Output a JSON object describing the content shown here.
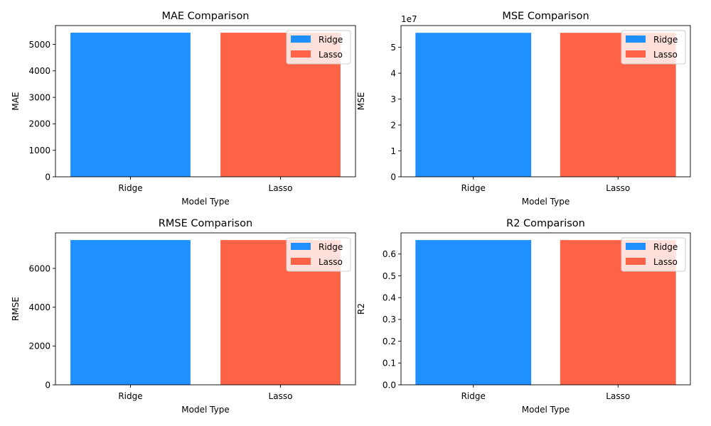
{
  "colors": {
    "ridge": "#1E90FF",
    "lasso": "#FF6347"
  },
  "chart_data": [
    {
      "type": "bar",
      "title": "MAE Comparison",
      "xlabel": "Model Type",
      "ylabel": "MAE",
      "categories": [
        "Ridge",
        "Lasso"
      ],
      "values": [
        5440,
        5440
      ],
      "ylim": [
        0,
        5710
      ],
      "yticks": [
        0,
        1000,
        2000,
        3000,
        4000,
        5000
      ],
      "ytick_labels": [
        "0",
        "1000",
        "2000",
        "3000",
        "4000",
        "5000"
      ],
      "offset_text": "",
      "legend": [
        "Ridge",
        "Lasso"
      ],
      "legend_position": "upper right",
      "grid": false
    },
    {
      "type": "bar",
      "title": "MSE Comparison",
      "xlabel": "Model Type",
      "ylabel": "MSE",
      "categories": [
        "Ridge",
        "Lasso"
      ],
      "values": [
        55600000,
        55600000
      ],
      "ylim": [
        0,
        58400000
      ],
      "yticks": [
        0,
        10000000,
        20000000,
        30000000,
        40000000,
        50000000
      ],
      "ytick_labels": [
        "0",
        "1",
        "2",
        "3",
        "4",
        "5"
      ],
      "offset_text": "1e7",
      "legend": [
        "Ridge",
        "Lasso"
      ],
      "legend_position": "upper right",
      "grid": false
    },
    {
      "type": "bar",
      "title": "RMSE Comparison",
      "xlabel": "Model Type",
      "ylabel": "RMSE",
      "categories": [
        "Ridge",
        "Lasso"
      ],
      "values": [
        7460,
        7460
      ],
      "ylim": [
        0,
        7830
      ],
      "yticks": [
        0,
        2000,
        4000,
        6000
      ],
      "ytick_labels": [
        "0",
        "2000",
        "4000",
        "6000"
      ],
      "offset_text": "",
      "legend": [
        "Ridge",
        "Lasso"
      ],
      "legend_position": "upper right",
      "grid": false
    },
    {
      "type": "bar",
      "title": "R2 Comparison",
      "xlabel": "Model Type",
      "ylabel": "R2",
      "categories": [
        "Ridge",
        "Lasso"
      ],
      "values": [
        0.664,
        0.664
      ],
      "ylim": [
        0,
        0.697
      ],
      "yticks": [
        0,
        0.1,
        0.2,
        0.3,
        0.4,
        0.5,
        0.6
      ],
      "ytick_labels": [
        "0.0",
        "0.1",
        "0.2",
        "0.3",
        "0.4",
        "0.5",
        "0.6"
      ],
      "offset_text": "",
      "legend": [
        "Ridge",
        "Lasso"
      ],
      "legend_position": "upper right",
      "grid": false
    }
  ]
}
